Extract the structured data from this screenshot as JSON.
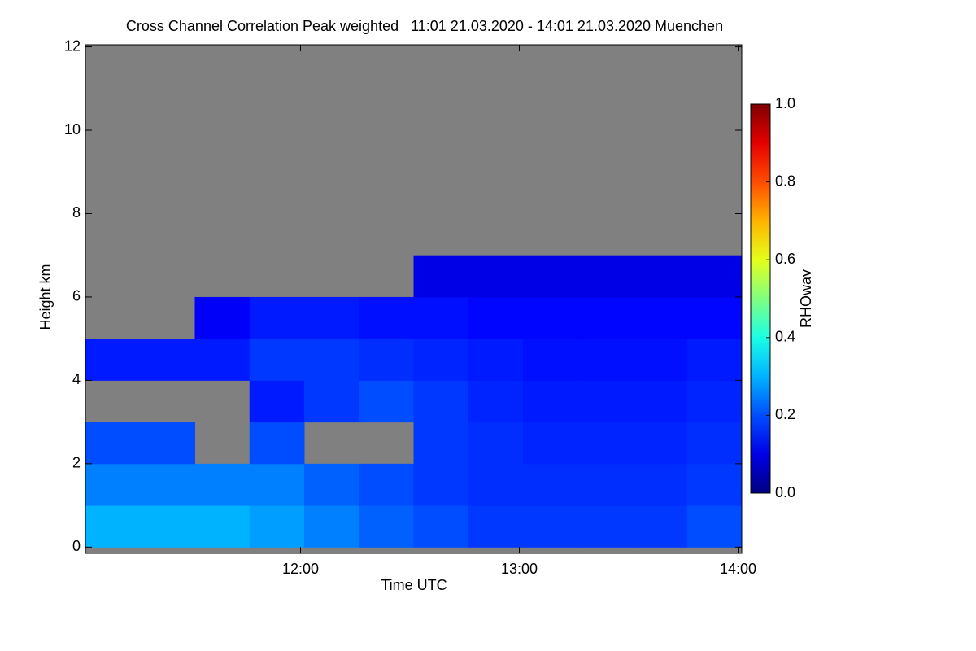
{
  "chart_data": {
    "type": "heatmap",
    "title": "Cross Channel Correlation Peak weighted   11:01 21.03.2020 - 14:01 21.03.2020 Muenchen",
    "x_label": "Time UTC",
    "y_label": "Height km",
    "colorbar_label": "RHOwav",
    "colormap": "jet",
    "nan_color": "#808080",
    "xlim": [
      11.0167,
      14.0167
    ],
    "xticks": [
      {
        "value": 12,
        "label": "12:00"
      },
      {
        "value": 13,
        "label": "13:00"
      },
      {
        "value": 14,
        "label": "14:00"
      }
    ],
    "ylim": [
      -0.15,
      12.05
    ],
    "yticks": [
      0,
      2,
      4,
      6,
      8,
      10,
      12
    ],
    "clim": [
      0,
      1
    ],
    "cticks": [
      {
        "value": 0,
        "label": "0.0"
      },
      {
        "value": 0.2,
        "label": "0.2"
      },
      {
        "value": 0.4,
        "label": "0.4"
      },
      {
        "value": 0.6,
        "label": "0.6"
      },
      {
        "value": 0.8,
        "label": "0.8"
      },
      {
        "value": 1,
        "label": "1.0"
      }
    ],
    "x_edges": [
      11.0167,
      11.2667,
      11.5167,
      11.7667,
      12.0167,
      12.2667,
      12.5167,
      12.7667,
      13.0167,
      13.2667,
      13.5167,
      13.7667,
      14.0167
    ],
    "y_edges": [
      0,
      1,
      2,
      3,
      4,
      5,
      6,
      7,
      8,
      9,
      10,
      11,
      12
    ],
    "z": [
      [
        0.3,
        0.3,
        0.3,
        0.28,
        0.25,
        0.22,
        0.2,
        0.18,
        0.18,
        0.18,
        0.18,
        0.2
      ],
      [
        0.25,
        0.25,
        0.25,
        0.25,
        0.22,
        0.2,
        0.18,
        0.17,
        0.17,
        0.17,
        0.17,
        0.18
      ],
      [
        0.2,
        0.2,
        null,
        0.2,
        null,
        null,
        0.18,
        0.17,
        0.16,
        0.16,
        0.16,
        0.17
      ],
      [
        null,
        null,
        null,
        0.15,
        0.18,
        0.2,
        0.18,
        0.16,
        0.15,
        0.15,
        0.15,
        0.16
      ],
      [
        0.15,
        0.15,
        0.15,
        0.18,
        0.18,
        0.17,
        0.16,
        0.15,
        0.14,
        0.14,
        0.14,
        0.15
      ],
      [
        null,
        null,
        0.12,
        0.15,
        0.15,
        0.14,
        0.14,
        0.13,
        0.13,
        0.13,
        0.13,
        0.13
      ],
      [
        null,
        null,
        null,
        null,
        null,
        null,
        0.1,
        0.1,
        0.1,
        0.1,
        0.1,
        0.1
      ],
      [
        null,
        null,
        null,
        null,
        null,
        null,
        null,
        null,
        null,
        null,
        null,
        null
      ],
      [
        null,
        null,
        null,
        null,
        null,
        null,
        null,
        null,
        null,
        null,
        null,
        null
      ],
      [
        null,
        null,
        null,
        null,
        null,
        null,
        null,
        null,
        null,
        null,
        null,
        null
      ],
      [
        null,
        null,
        null,
        null,
        null,
        null,
        null,
        null,
        null,
        null,
        null,
        null
      ],
      [
        null,
        null,
        null,
        null,
        null,
        null,
        null,
        null,
        null,
        null,
        null,
        null
      ]
    ]
  }
}
